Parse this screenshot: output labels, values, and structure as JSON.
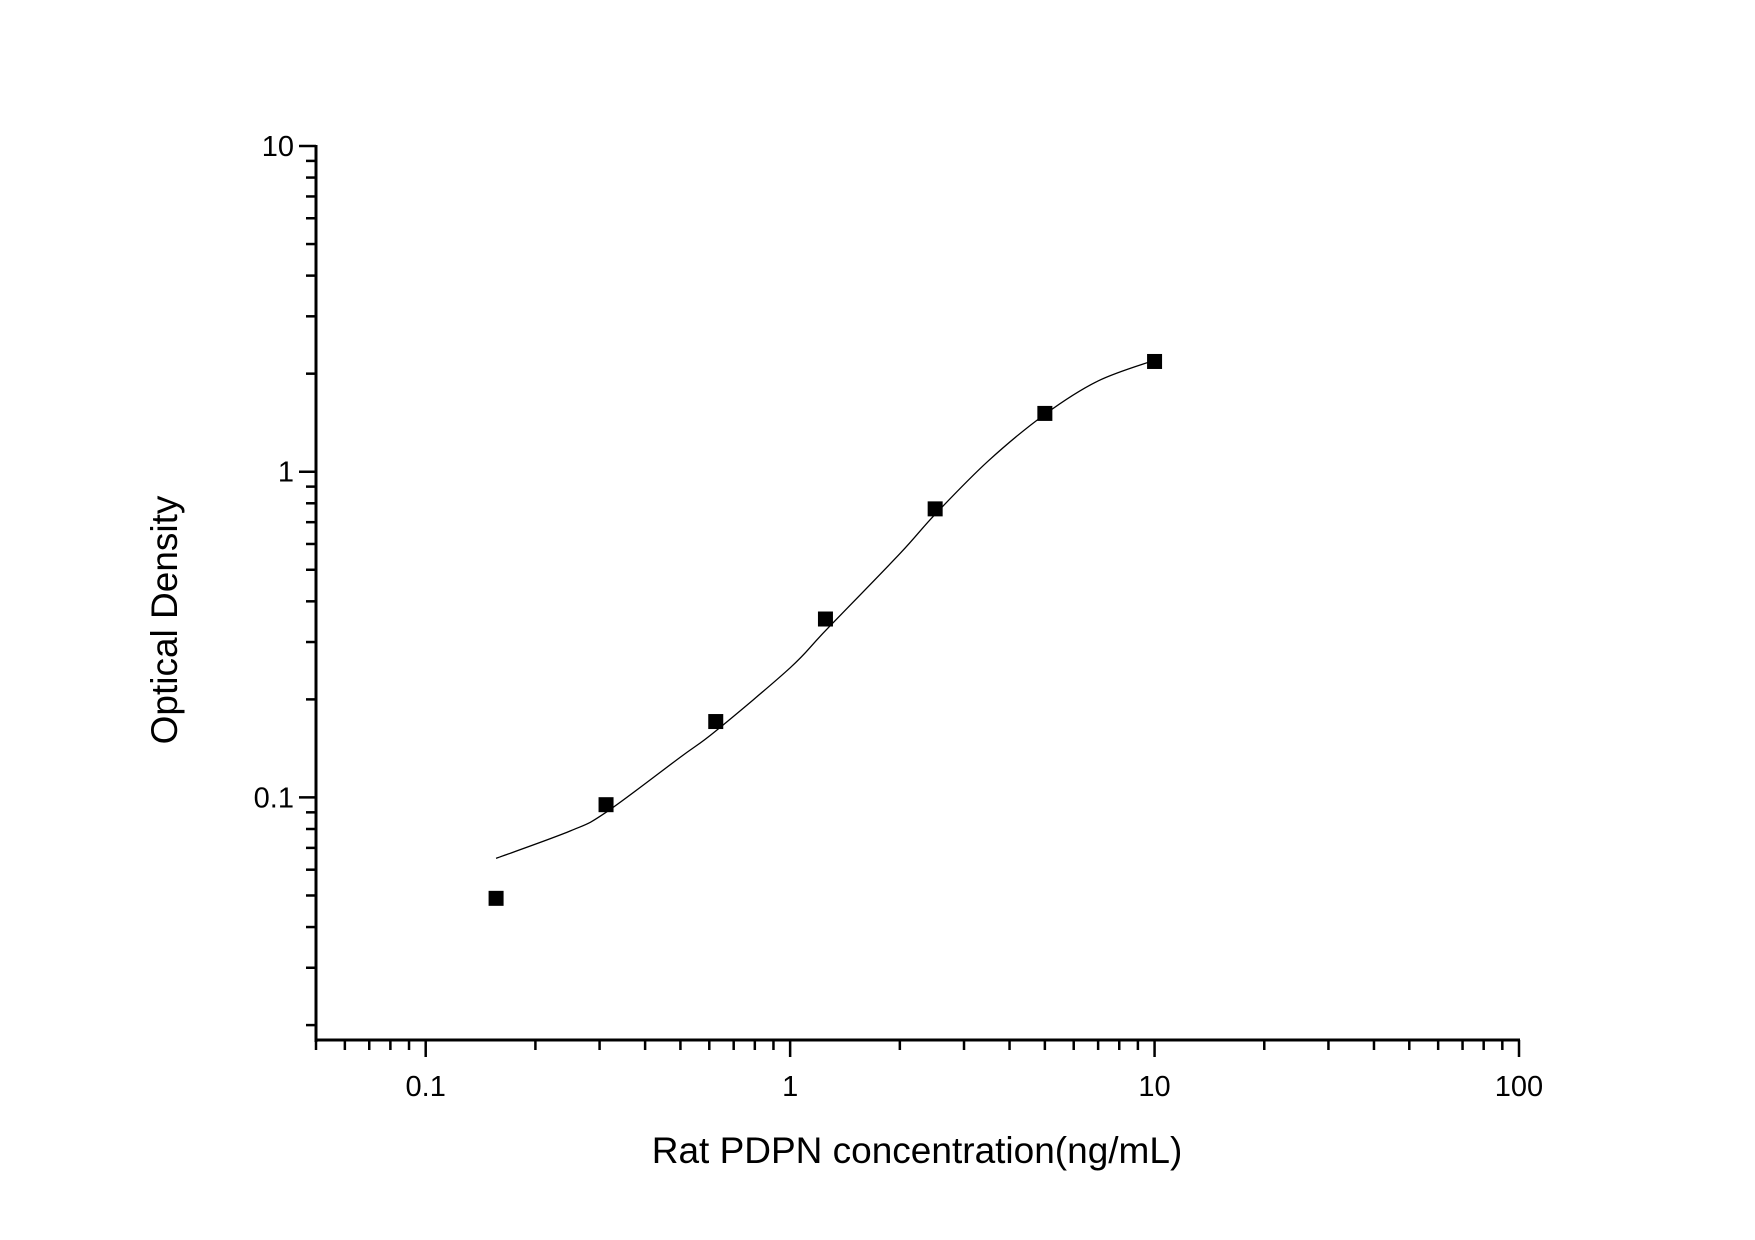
{
  "chart_data": {
    "type": "scatter",
    "title": "",
    "xlabel": "Rat PDPN concentration(ng/mL)",
    "ylabel": "Optical Density",
    "xscale": "log",
    "yscale": "log",
    "xlim": [
      0.05,
      100
    ],
    "ylim": [
      0.018,
      10
    ],
    "xticks": [
      {
        "value": 0.1,
        "label": "0.1"
      },
      {
        "value": 1,
        "label": "1"
      },
      {
        "value": 10,
        "label": "10"
      },
      {
        "value": 100,
        "label": "100"
      }
    ],
    "yticks": [
      {
        "value": 0.1,
        "label": "0.1"
      },
      {
        "value": 1,
        "label": "1"
      },
      {
        "value": 10,
        "label": "10"
      }
    ],
    "grid": false,
    "marker": "square",
    "color": "#000000",
    "points": {
      "x": [
        0.156,
        0.3125,
        0.625,
        1.25,
        2.5,
        5,
        10
      ],
      "y": [
        0.049,
        0.095,
        0.171,
        0.353,
        0.769,
        1.51,
        2.18
      ]
    },
    "fit_curve": {
      "x": [
        0.156,
        0.25,
        0.3125,
        0.5,
        0.625,
        1,
        1.25,
        2,
        2.5,
        3.5,
        5,
        7,
        10
      ],
      "y": [
        0.065,
        0.079,
        0.09,
        0.133,
        0.16,
        0.25,
        0.325,
        0.56,
        0.74,
        1.08,
        1.5,
        1.9,
        2.2
      ]
    }
  }
}
